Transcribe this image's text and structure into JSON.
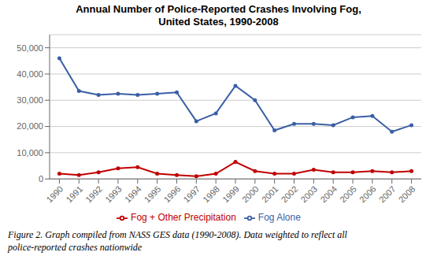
{
  "chart_data": {
    "type": "line",
    "title": "Annual Number of Police-Reported Crashes Involving Fog,\nUnited States, 1990-2008",
    "x": [
      1990,
      1991,
      1992,
      1993,
      1994,
      1995,
      1996,
      1997,
      1998,
      1999,
      2000,
      2001,
      2002,
      2003,
      2004,
      2005,
      2006,
      2007,
      2008
    ],
    "series": [
      {
        "name": "Fog Alone",
        "color": "#3a5fa5",
        "values": [
          46000,
          33500,
          32000,
          32500,
          32000,
          32500,
          33000,
          22000,
          25000,
          35500,
          30000,
          18500,
          21000,
          21000,
          20500,
          23500,
          24000,
          18000,
          20500
        ]
      },
      {
        "name": "Fog + Other Precipitation",
        "color": "#c00000",
        "values": [
          2000,
          1500,
          2500,
          4000,
          4500,
          2000,
          1500,
          1000,
          2000,
          6500,
          3000,
          2000,
          2000,
          3500,
          2500,
          2500,
          3000,
          2500,
          3000
        ]
      }
    ],
    "xlim": [
      1989.5,
      2008.5
    ],
    "xticks": [
      1990,
      1991,
      1992,
      1993,
      1994,
      1995,
      1996,
      1997,
      1998,
      1999,
      2000,
      2001,
      2002,
      2003,
      2004,
      2005,
      2006,
      2007,
      2008
    ],
    "ylim": [
      0,
      55000
    ],
    "yticks": [
      0,
      {
        "value": 10000,
        "label": "10,000"
      },
      {
        "value": 20000,
        "label": "20,000"
      },
      {
        "value": 30000,
        "label": "30,000"
      },
      {
        "value": 40000,
        "label": "40,000"
      },
      {
        "value": 50000,
        "label": "50,000"
      }
    ],
    "grid": true,
    "legend": "bottom",
    "marker": "circle",
    "annotations": [
      "Figure 2. Graph compiled from NASS GES data (1990-2008). Data weighted to reflect all",
      "police-reported crashes nationwide"
    ]
  }
}
